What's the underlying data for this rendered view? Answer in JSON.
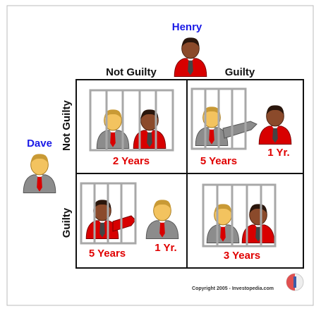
{
  "players": {
    "top": "Henry",
    "left": "Dave"
  },
  "columns": [
    "Not Guilty",
    "Guilty"
  ],
  "rows": [
    "Not Guilty",
    "Guilty"
  ],
  "cells": [
    [
      {
        "sentence": "2 Years"
      },
      {
        "left_sentence": "5 Years",
        "top_sentence": "1 Yr."
      }
    ],
    [
      {
        "left_sentence": "5 Years",
        "top_sentence": "1 Yr."
      },
      {
        "sentence": "3 Years"
      }
    ]
  ],
  "copyright": "Copyright 2005 - Investopedia.com"
}
